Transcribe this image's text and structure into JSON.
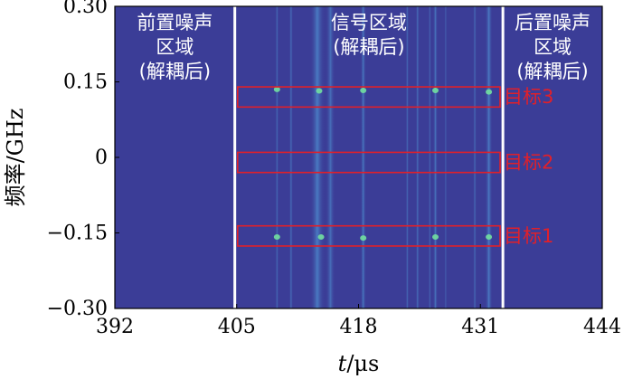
{
  "chart_data": {
    "type": "heatmap",
    "xlabel_italic": "t",
    "xlabel_unit": "/μs",
    "ylabel": "频率/GHz",
    "xlim": [
      392,
      444
    ],
    "ylim": [
      -0.3,
      0.3
    ],
    "x_ticks": [
      392,
      405,
      418,
      431,
      444
    ],
    "y_ticks": [
      0.3,
      0.15,
      0,
      -0.15,
      -0.3
    ],
    "y_tick_labels": [
      "0.30",
      "0.15",
      "0",
      "−0.15",
      "−0.30"
    ],
    "colors": {
      "background": "#3b3d97",
      "stripe": "#3f64b4",
      "stripe_bright": "#4e8fd0",
      "hot": "#72e0a0",
      "divider": "#ffffff",
      "target_box": "#e0202a"
    },
    "dividers_x": [
      404.8,
      433.4
    ],
    "regions": [
      {
        "x_center": 398.4,
        "lines": [
          "前置噪声",
          "区域",
          "(解耦后)"
        ]
      },
      {
        "x_center": 419.1,
        "lines": [
          "信号区域",
          "(解耦后)"
        ]
      },
      {
        "x_center": 438.7,
        "lines": [
          "后置噪声",
          "区域",
          "(解耦后)"
        ]
      }
    ],
    "stripes": [
      {
        "x": 409.3,
        "w": 0.35,
        "intensity": 0.55
      },
      {
        "x": 410.8,
        "w": 0.4,
        "intensity": 0.6
      },
      {
        "x": 413.6,
        "w": 1.6,
        "intensity": 0.75
      },
      {
        "x": 415.0,
        "w": 1.0,
        "intensity": 0.6
      },
      {
        "x": 418.5,
        "w": 0.6,
        "intensity": 0.7
      },
      {
        "x": 423.2,
        "w": 0.35,
        "intensity": 0.55
      },
      {
        "x": 424.3,
        "w": 0.4,
        "intensity": 0.6
      },
      {
        "x": 425.6,
        "w": 0.3,
        "intensity": 0.5
      },
      {
        "x": 426.2,
        "w": 0.5,
        "intensity": 0.7
      },
      {
        "x": 427.3,
        "w": 0.25,
        "intensity": 0.45
      },
      {
        "x": 430.4,
        "w": 0.35,
        "intensity": 0.6
      },
      {
        "x": 431.9,
        "w": 0.8,
        "intensity": 0.75
      }
    ],
    "hot_spots": [
      {
        "x": 409.3,
        "y": 0.135
      },
      {
        "x": 413.8,
        "y": 0.132
      },
      {
        "x": 418.5,
        "y": 0.133
      },
      {
        "x": 426.2,
        "y": 0.133
      },
      {
        "x": 431.9,
        "y": 0.13
      },
      {
        "x": 409.3,
        "y": -0.158
      },
      {
        "x": 414.0,
        "y": -0.158
      },
      {
        "x": 418.5,
        "y": -0.16
      },
      {
        "x": 426.2,
        "y": -0.158
      },
      {
        "x": 431.9,
        "y": -0.158
      }
    ],
    "targets": [
      {
        "label": "目标3",
        "x0": 405.1,
        "x1": 433.1,
        "y_center": 0.12,
        "height": 0.04
      },
      {
        "label": "目标2",
        "x0": 405.1,
        "x1": 433.1,
        "y_center": -0.01,
        "height": 0.04
      },
      {
        "label": "目标1",
        "x0": 405.1,
        "x1": 433.1,
        "y_center": -0.156,
        "height": 0.04
      }
    ]
  }
}
